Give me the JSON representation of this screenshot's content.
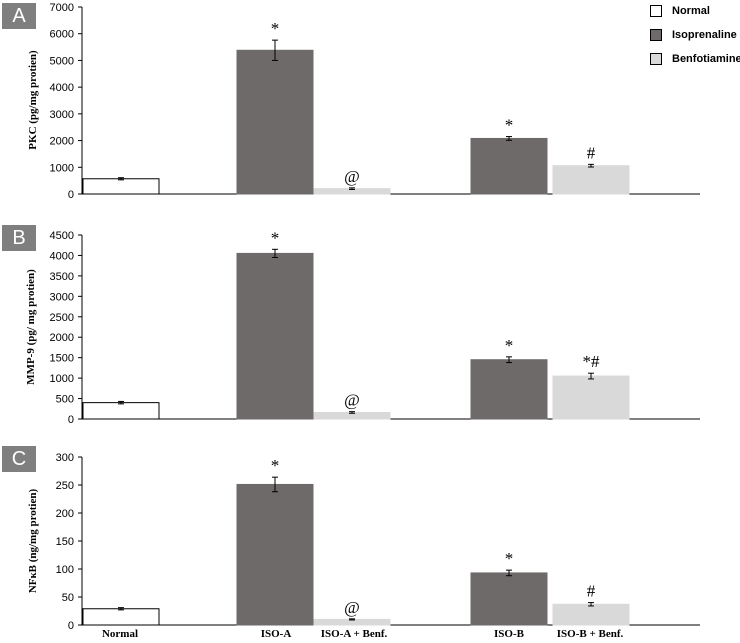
{
  "panels": [
    {
      "tag": "A"
    },
    {
      "tag": "B"
    },
    {
      "tag": "C"
    }
  ],
  "legend": {
    "items": [
      {
        "label": "Normal",
        "color": "#ffffff"
      },
      {
        "label": "Isoprenaline",
        "color": "#6e6a6a"
      },
      {
        "label": "Benfotiamine",
        "color": "#d9d9d9"
      }
    ]
  },
  "x_labels": [
    "Normal",
    "ISO-A",
    "ISO-A + Benf.",
    "ISO-B",
    "ISO-B + Benf."
  ],
  "chart_data": [
    {
      "type": "bar",
      "panel": "A",
      "ylabel": "PKC (pg/mg protien)",
      "ylim": [
        0,
        7000
      ],
      "yticks": [
        0,
        1000,
        2000,
        3000,
        4000,
        5000,
        6000,
        7000
      ],
      "categories": [
        "Normal",
        "ISO-A",
        "ISO-A + Benf.",
        "ISO-B",
        "ISO-B + Benf."
      ],
      "values": [
        570,
        5380,
        200,
        2080,
        1060
      ],
      "errors": [
        40,
        380,
        30,
        70,
        50
      ],
      "colors": [
        "#ffffff",
        "#6e6a6a",
        "#d9d9d9",
        "#6e6a6a",
        "#d9d9d9"
      ],
      "annotations": [
        "",
        "*",
        "@",
        "*",
        "#"
      ]
    },
    {
      "type": "bar",
      "panel": "B",
      "ylabel": "MMP-9 (pg/ mg protien)",
      "ylim": [
        0,
        4500
      ],
      "yticks": [
        0,
        500,
        1000,
        1500,
        2000,
        2500,
        3000,
        3500,
        4000,
        4500
      ],
      "categories": [
        "Normal",
        "ISO-A",
        "ISO-A + Benf.",
        "ISO-B",
        "ISO-B + Benf."
      ],
      "values": [
        400,
        4050,
        160,
        1450,
        1050
      ],
      "errors": [
        30,
        100,
        20,
        70,
        70
      ],
      "colors": [
        "#ffffff",
        "#6e6a6a",
        "#d9d9d9",
        "#6e6a6a",
        "#d9d9d9"
      ],
      "annotations": [
        "",
        "*",
        "@",
        "*",
        "*#"
      ]
    },
    {
      "type": "bar",
      "panel": "C",
      "ylabel": "NFκB (ng/mg protien)",
      "ylim": [
        0,
        300
      ],
      "yticks": [
        0,
        50,
        100,
        150,
        200,
        250,
        300
      ],
      "categories": [
        "Normal",
        "ISO-A",
        "ISO-A + Benf.",
        "ISO-B",
        "ISO-B + Benf."
      ],
      "values": [
        29,
        251,
        10,
        93,
        37
      ],
      "errors": [
        2,
        13,
        1,
        5,
        3
      ],
      "colors": [
        "#ffffff",
        "#6e6a6a",
        "#d9d9d9",
        "#6e6a6a",
        "#d9d9d9"
      ],
      "annotations": [
        "",
        "*",
        "@",
        "*",
        "#"
      ]
    }
  ]
}
